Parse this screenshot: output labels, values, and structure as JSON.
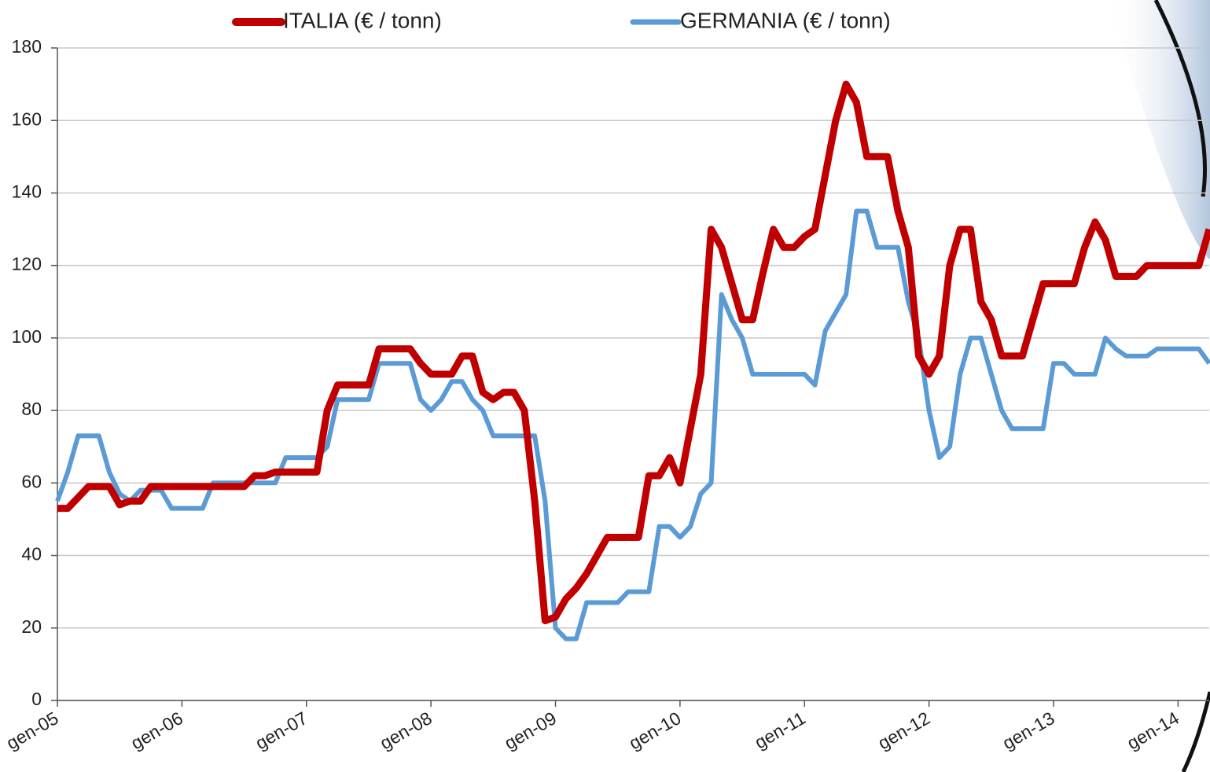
{
  "chart_data": {
    "type": "line",
    "categories": [
      "gen-05",
      null,
      null,
      null,
      null,
      null,
      null,
      null,
      null,
      null,
      null,
      null,
      "gen-06",
      null,
      null,
      null,
      null,
      null,
      null,
      null,
      null,
      null,
      null,
      null,
      "gen-07",
      null,
      null,
      null,
      null,
      null,
      null,
      null,
      null,
      null,
      null,
      null,
      "gen-08",
      null,
      null,
      null,
      null,
      null,
      null,
      null,
      null,
      null,
      null,
      null,
      "gen-09",
      null,
      null,
      null,
      null,
      null,
      null,
      null,
      null,
      null,
      null,
      null,
      "gen-10",
      null,
      null,
      null,
      null,
      null,
      null,
      null,
      null,
      null,
      null,
      null,
      "gen-11",
      null,
      null,
      null,
      null,
      null,
      null,
      null,
      null,
      null,
      null,
      null,
      "gen-12",
      null,
      null,
      null,
      null,
      null,
      null,
      null,
      null,
      null,
      null,
      null,
      "gen-13",
      null,
      null,
      null,
      null,
      null,
      null,
      null,
      null,
      null,
      null,
      null,
      "gen-14",
      null,
      null,
      null
    ],
    "series": [
      {
        "name": "ITALIA (€ / tonn)",
        "color": "#c00000",
        "values": [
          53,
          53,
          56,
          59,
          59,
          59,
          54,
          55,
          55,
          59,
          59,
          59,
          59,
          59,
          59,
          59,
          59,
          59,
          59,
          62,
          62,
          63,
          63,
          63,
          63,
          63,
          80,
          87,
          87,
          87,
          87,
          97,
          97,
          97,
          97,
          93,
          90,
          90,
          90,
          95,
          95,
          85,
          83,
          85,
          85,
          80,
          55,
          22,
          23,
          28,
          31,
          35,
          40,
          45,
          45,
          45,
          45,
          62,
          62,
          67,
          60,
          75,
          90,
          130,
          125,
          115,
          105,
          105,
          118,
          130,
          125,
          125,
          128,
          130,
          145,
          160,
          170,
          165,
          150,
          150,
          150,
          135,
          125,
          95,
          90,
          95,
          120,
          130,
          130,
          110,
          105,
          95,
          95,
          95,
          105,
          115,
          115,
          115,
          115,
          125,
          132,
          127,
          117,
          117,
          117,
          120,
          120,
          120,
          120,
          120,
          120,
          130
        ]
      },
      {
        "name": "GERMANIA (€ / tonn)",
        "color": "#5b9bd5",
        "values": [
          55,
          63,
          73,
          73,
          73,
          63,
          57,
          55,
          58,
          58,
          58,
          53,
          53,
          53,
          53,
          60,
          60,
          60,
          60,
          60,
          60,
          60,
          67,
          67,
          67,
          67,
          70,
          83,
          83,
          83,
          83,
          93,
          93,
          93,
          93,
          83,
          80,
          83,
          88,
          88,
          83,
          80,
          73,
          73,
          73,
          73,
          73,
          55,
          20,
          17,
          17,
          27,
          27,
          27,
          27,
          30,
          30,
          30,
          48,
          48,
          45,
          48,
          57,
          60,
          112,
          105,
          100,
          90,
          90,
          90,
          90,
          90,
          90,
          87,
          102,
          107,
          112,
          135,
          135,
          125,
          125,
          125,
          110,
          100,
          80,
          67,
          70,
          90,
          100,
          100,
          90,
          80,
          75,
          75,
          75,
          75,
          93,
          93,
          90,
          90,
          90,
          100,
          97,
          95,
          95,
          95,
          97,
          97,
          97,
          97,
          97,
          93
        ]
      }
    ],
    "ylim": [
      0,
      180
    ],
    "yticks": [
      0,
      20,
      40,
      60,
      80,
      100,
      120,
      140,
      160,
      180
    ],
    "grid": true
  }
}
